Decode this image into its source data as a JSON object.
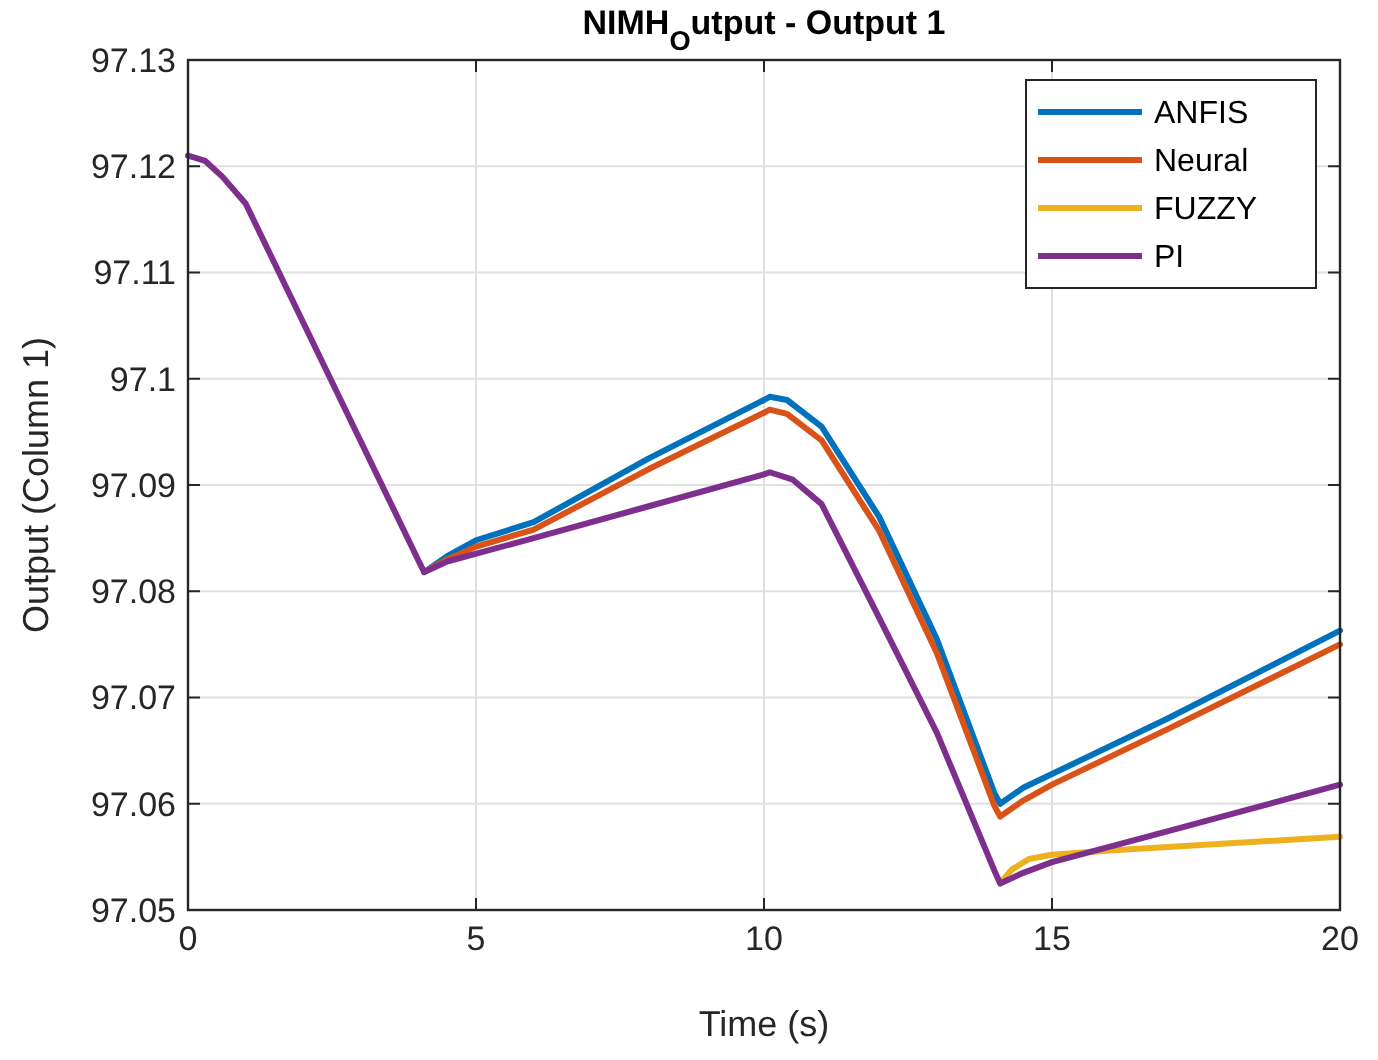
{
  "chart_data": {
    "type": "line",
    "title": "NIMH$_{O}$utput - Output 1",
    "xlabel": "Time (s)",
    "ylabel": "Output (Column 1)",
    "xlim": [
      0,
      20
    ],
    "xticks": [
      0,
      5,
      10,
      15,
      20
    ],
    "ylim": [
      97.05,
      97.13
    ],
    "yticks": [
      97.05,
      97.06,
      97.07,
      97.08,
      97.09,
      97.1,
      97.11,
      97.12,
      97.13
    ],
    "grid": true,
    "legend": "top right",
    "line_style": "solid",
    "series": [
      {
        "name": "ANFIS",
        "color": "#0072bd",
        "x": [
          4.1,
          4.5,
          5,
          6,
          8,
          10,
          10.1,
          10.4,
          11,
          12,
          13,
          14,
          14.1,
          14.5,
          15,
          17,
          20
        ],
        "values": [
          97.0818,
          97.0833,
          97.0848,
          97.0865,
          97.0925,
          97.098,
          97.0983,
          97.098,
          97.0955,
          97.087,
          97.0755,
          97.061,
          97.06,
          97.0615,
          97.0628,
          97.068,
          97.0763
        ]
      },
      {
        "name": "Neural",
        "color": "#d95319",
        "x": [
          4.1,
          4.5,
          5,
          6,
          8,
          10,
          10.1,
          10.4,
          11,
          12,
          13,
          14,
          14.1,
          14.5,
          15,
          17,
          20
        ],
        "values": [
          97.0818,
          97.083,
          97.0842,
          97.0858,
          97.0915,
          97.0968,
          97.0971,
          97.0967,
          97.0942,
          97.0857,
          97.0742,
          97.0598,
          97.0588,
          97.0603,
          97.0618,
          97.067,
          97.075
        ]
      },
      {
        "name": "FUZZY",
        "color": "#edb120",
        "x": [
          14.1,
          14.3,
          14.6,
          15,
          16,
          20
        ],
        "values": [
          97.0525,
          97.0538,
          97.0548,
          97.0552,
          97.0556,
          97.0569
        ]
      },
      {
        "name": "PI",
        "color": "#7e2f8e",
        "x": [
          0,
          0.3,
          0.6,
          1,
          2,
          3,
          4,
          4.1,
          4.5,
          6,
          8,
          10,
          10.1,
          10.5,
          11,
          12,
          13,
          14,
          14.1,
          14.5,
          15,
          17,
          20
        ],
        "values": [
          97.121,
          97.1205,
          97.119,
          97.1165,
          97.1053,
          97.0941,
          97.0829,
          97.0818,
          97.0828,
          97.085,
          97.088,
          97.091,
          97.0912,
          97.0905,
          97.0882,
          97.0775,
          97.0667,
          97.0537,
          97.0525,
          97.0535,
          97.0545,
          97.0574,
          97.0618
        ]
      }
    ]
  }
}
